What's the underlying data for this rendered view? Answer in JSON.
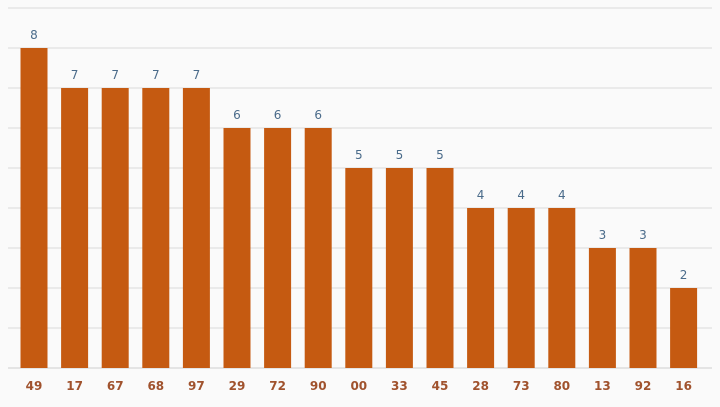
{
  "chart_data": {
    "type": "bar",
    "categories": [
      "49",
      "17",
      "67",
      "68",
      "97",
      "29",
      "72",
      "90",
      "00",
      "33",
      "45",
      "28",
      "73",
      "80",
      "13",
      "92",
      "16"
    ],
    "values": [
      8,
      7,
      7,
      7,
      7,
      6,
      6,
      6,
      5,
      5,
      5,
      4,
      4,
      4,
      3,
      3,
      2
    ],
    "title": "",
    "xlabel": "",
    "ylabel": "",
    "ylim": [
      0,
      9
    ],
    "grid": true,
    "bar_color": "#c55a11",
    "value_label_color": "#4a6b8a",
    "category_label_color": "#a0522d"
  }
}
